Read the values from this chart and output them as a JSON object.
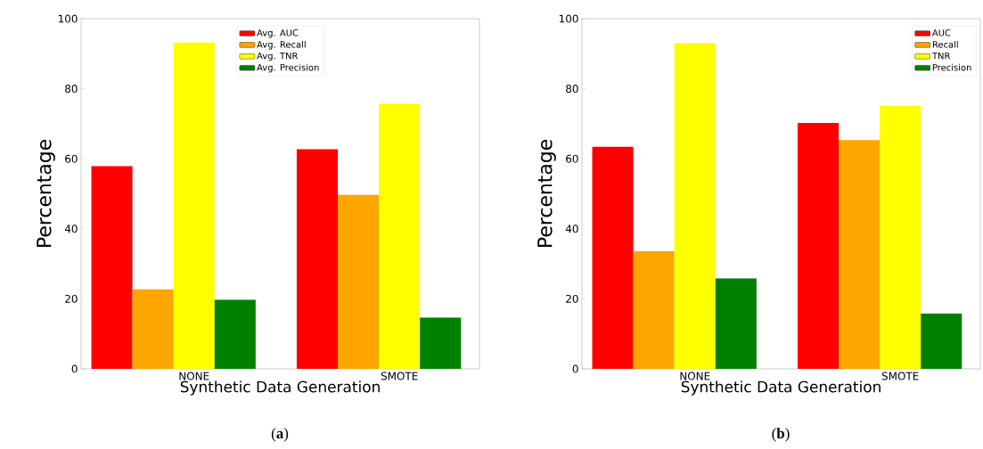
{
  "chart_data": [
    {
      "type": "bar",
      "categories": [
        "NONE",
        "SMOTE"
      ],
      "xlabel": "Synthetic Data Generation",
      "ylabel": "Percentage",
      "ylim": [
        0,
        100
      ],
      "yticks": [
        0,
        20,
        40,
        60,
        80,
        100
      ],
      "legend": "top",
      "grid": false,
      "annotations": [
        "(**a**)"
      ],
      "series": [
        {
          "name": "Avg. AUC",
          "color": "#ff0000",
          "values": [
            57.9,
            62.7
          ]
        },
        {
          "name": "Avg. Recall",
          "color": "#ffa500",
          "values": [
            22.7,
            49.7
          ]
        },
        {
          "name": "Avg. TNR",
          "color": "#ffff00",
          "values": [
            93.2,
            75.7
          ]
        },
        {
          "name": "Avg. Precision",
          "color": "#008000",
          "values": [
            19.7,
            14.6
          ]
        }
      ]
    },
    {
      "type": "bar",
      "categories": [
        "NONE",
        "SMOTE"
      ],
      "xlabel": "Synthetic Data Generation",
      "ylabel": "Percentage",
      "ylim": [
        0,
        100
      ],
      "yticks": [
        0,
        20,
        40,
        60,
        80,
        100
      ],
      "legend": "top right",
      "grid": false,
      "annotations": [
        "(**b**)"
      ],
      "series": [
        {
          "name": "AUC",
          "color": "#ff0000",
          "values": [
            63.4,
            70.2
          ]
        },
        {
          "name": "Recall",
          "color": "#ffa500",
          "values": [
            33.6,
            65.3
          ]
        },
        {
          "name": "TNR",
          "color": "#ffff00",
          "values": [
            93.0,
            75.1
          ]
        },
        {
          "name": "Precision",
          "color": "#008000",
          "values": [
            25.8,
            15.8
          ]
        }
      ]
    }
  ]
}
